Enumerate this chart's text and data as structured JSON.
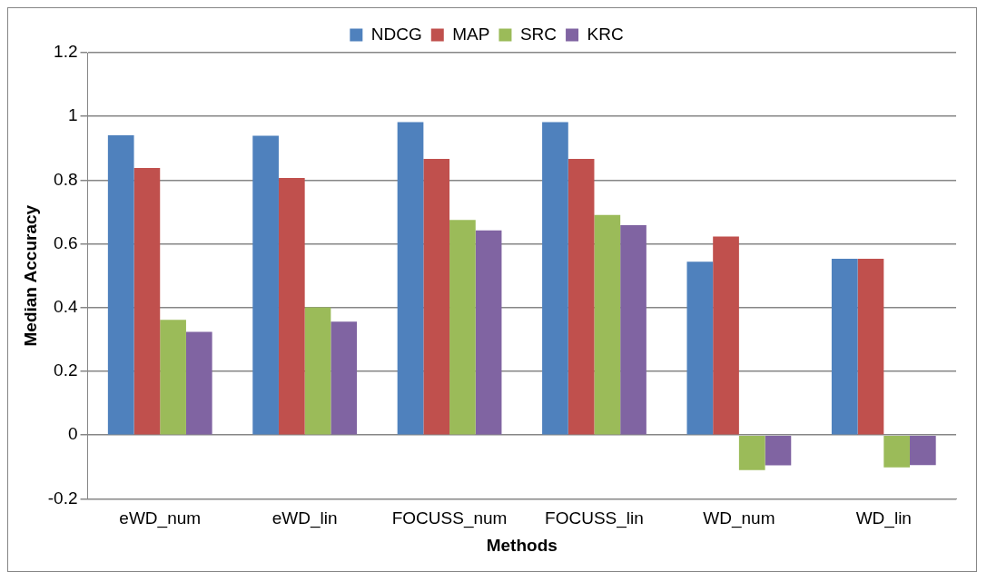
{
  "chart_data": {
    "type": "bar",
    "xlabel": "Methods",
    "ylabel": "Median Accuracy",
    "categories": [
      "eWD_num",
      "eWD_lin",
      "FOCUSS_num",
      "FOCUSS_lin",
      "WD_num",
      "WD_lin"
    ],
    "series": [
      {
        "name": "NDCG",
        "color": "#4f81bd",
        "values": [
          0.941,
          0.939,
          0.982,
          0.982,
          0.544,
          0.553
        ]
      },
      {
        "name": "MAP",
        "color": "#c0504d",
        "values": [
          0.838,
          0.807,
          0.867,
          0.867,
          0.623,
          0.553
        ]
      },
      {
        "name": "SRC",
        "color": "#9bbb59",
        "values": [
          0.362,
          0.401,
          0.675,
          0.691,
          -0.11,
          -0.101
        ]
      },
      {
        "name": "KRC",
        "color": "#8064a2",
        "values": [
          0.324,
          0.356,
          0.642,
          0.659,
          -0.095,
          -0.094
        ]
      }
    ],
    "ylim": [
      -0.2,
      1.2
    ],
    "yticks": [
      -0.2,
      0,
      0.2,
      0.4,
      0.6,
      0.8,
      1,
      1.2
    ],
    "grid": "y",
    "legend": "top"
  }
}
